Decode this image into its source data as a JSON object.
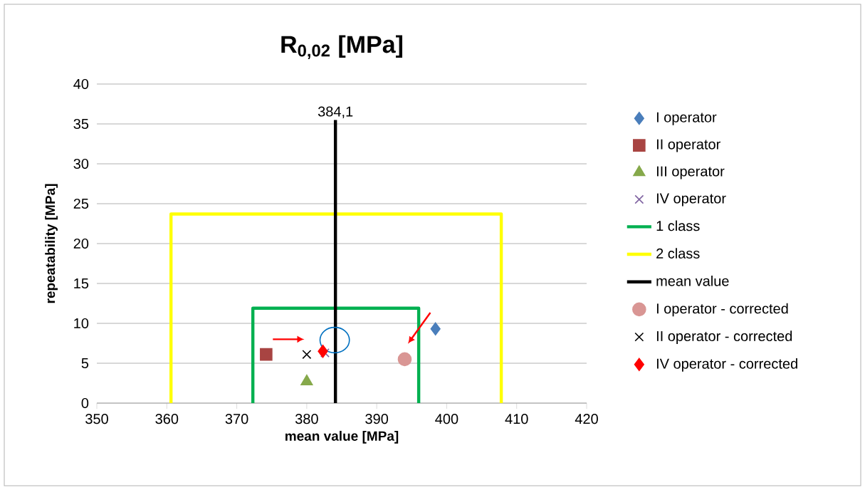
{
  "chart_data": {
    "type": "scatter",
    "title": "R$_{0,02}$ [MPa]",
    "xlabel": "mean value [MPa]",
    "ylabel": "repeatability [MPa]",
    "xlim": [
      350,
      420
    ],
    "xticks": [
      350,
      360,
      370,
      380,
      390,
      400,
      410,
      420
    ],
    "ylim": [
      0,
      40
    ],
    "yticks": [
      0,
      5,
      10,
      15,
      20,
      25,
      30,
      35,
      40
    ],
    "grid": "y",
    "legend": "right",
    "annotations": [
      {
        "text": "384,1",
        "x": 384.1,
        "y": 35.5
      }
    ],
    "series": [
      {
        "name": "I operator",
        "marker": "diamond",
        "color": "#4a7ebb",
        "x": [
          398.4
        ],
        "values": [
          9.3
        ]
      },
      {
        "name": "II operator",
        "marker": "square",
        "color": "#a84442",
        "x": [
          374.2
        ],
        "values": [
          6.1
        ]
      },
      {
        "name": "III operator",
        "marker": "triangle",
        "color": "#86a94b",
        "x": [
          380.0
        ],
        "values": [
          2.7
        ]
      },
      {
        "name": "IV operator",
        "marker": "cross",
        "color": "#8064a2",
        "x": [
          382.6
        ],
        "values": [
          6.3
        ]
      },
      {
        "name": "1 class",
        "type": "line",
        "marker": "none",
        "color": "#00b050",
        "x": [
          372.3,
          372.3,
          396.0,
          396.0
        ],
        "values": [
          0,
          11.9,
          11.9,
          0
        ]
      },
      {
        "name": "2 class",
        "type": "line",
        "marker": "none",
        "color": "#ffff00",
        "x": [
          360.6,
          360.6,
          407.8,
          407.8
        ],
        "values": [
          0,
          23.7,
          23.7,
          0
        ]
      },
      {
        "name": "mean value",
        "type": "line",
        "marker": "none",
        "color": "#000000",
        "x": [
          384.1,
          384.1
        ],
        "values": [
          0,
          35.5
        ]
      },
      {
        "name": "I operator - corrected",
        "marker": "circle",
        "color": "#d99694",
        "x": [
          394.0
        ],
        "values": [
          5.5
        ]
      },
      {
        "name": "II operator - corrected",
        "marker": "cross",
        "color": "#000000",
        "x": [
          380.0
        ],
        "values": [
          6.1
        ]
      },
      {
        "name": "IV operator - corrected",
        "marker": "diamond",
        "color": "#ff0000",
        "x": [
          382.3
        ],
        "values": [
          6.5
        ]
      }
    ]
  }
}
